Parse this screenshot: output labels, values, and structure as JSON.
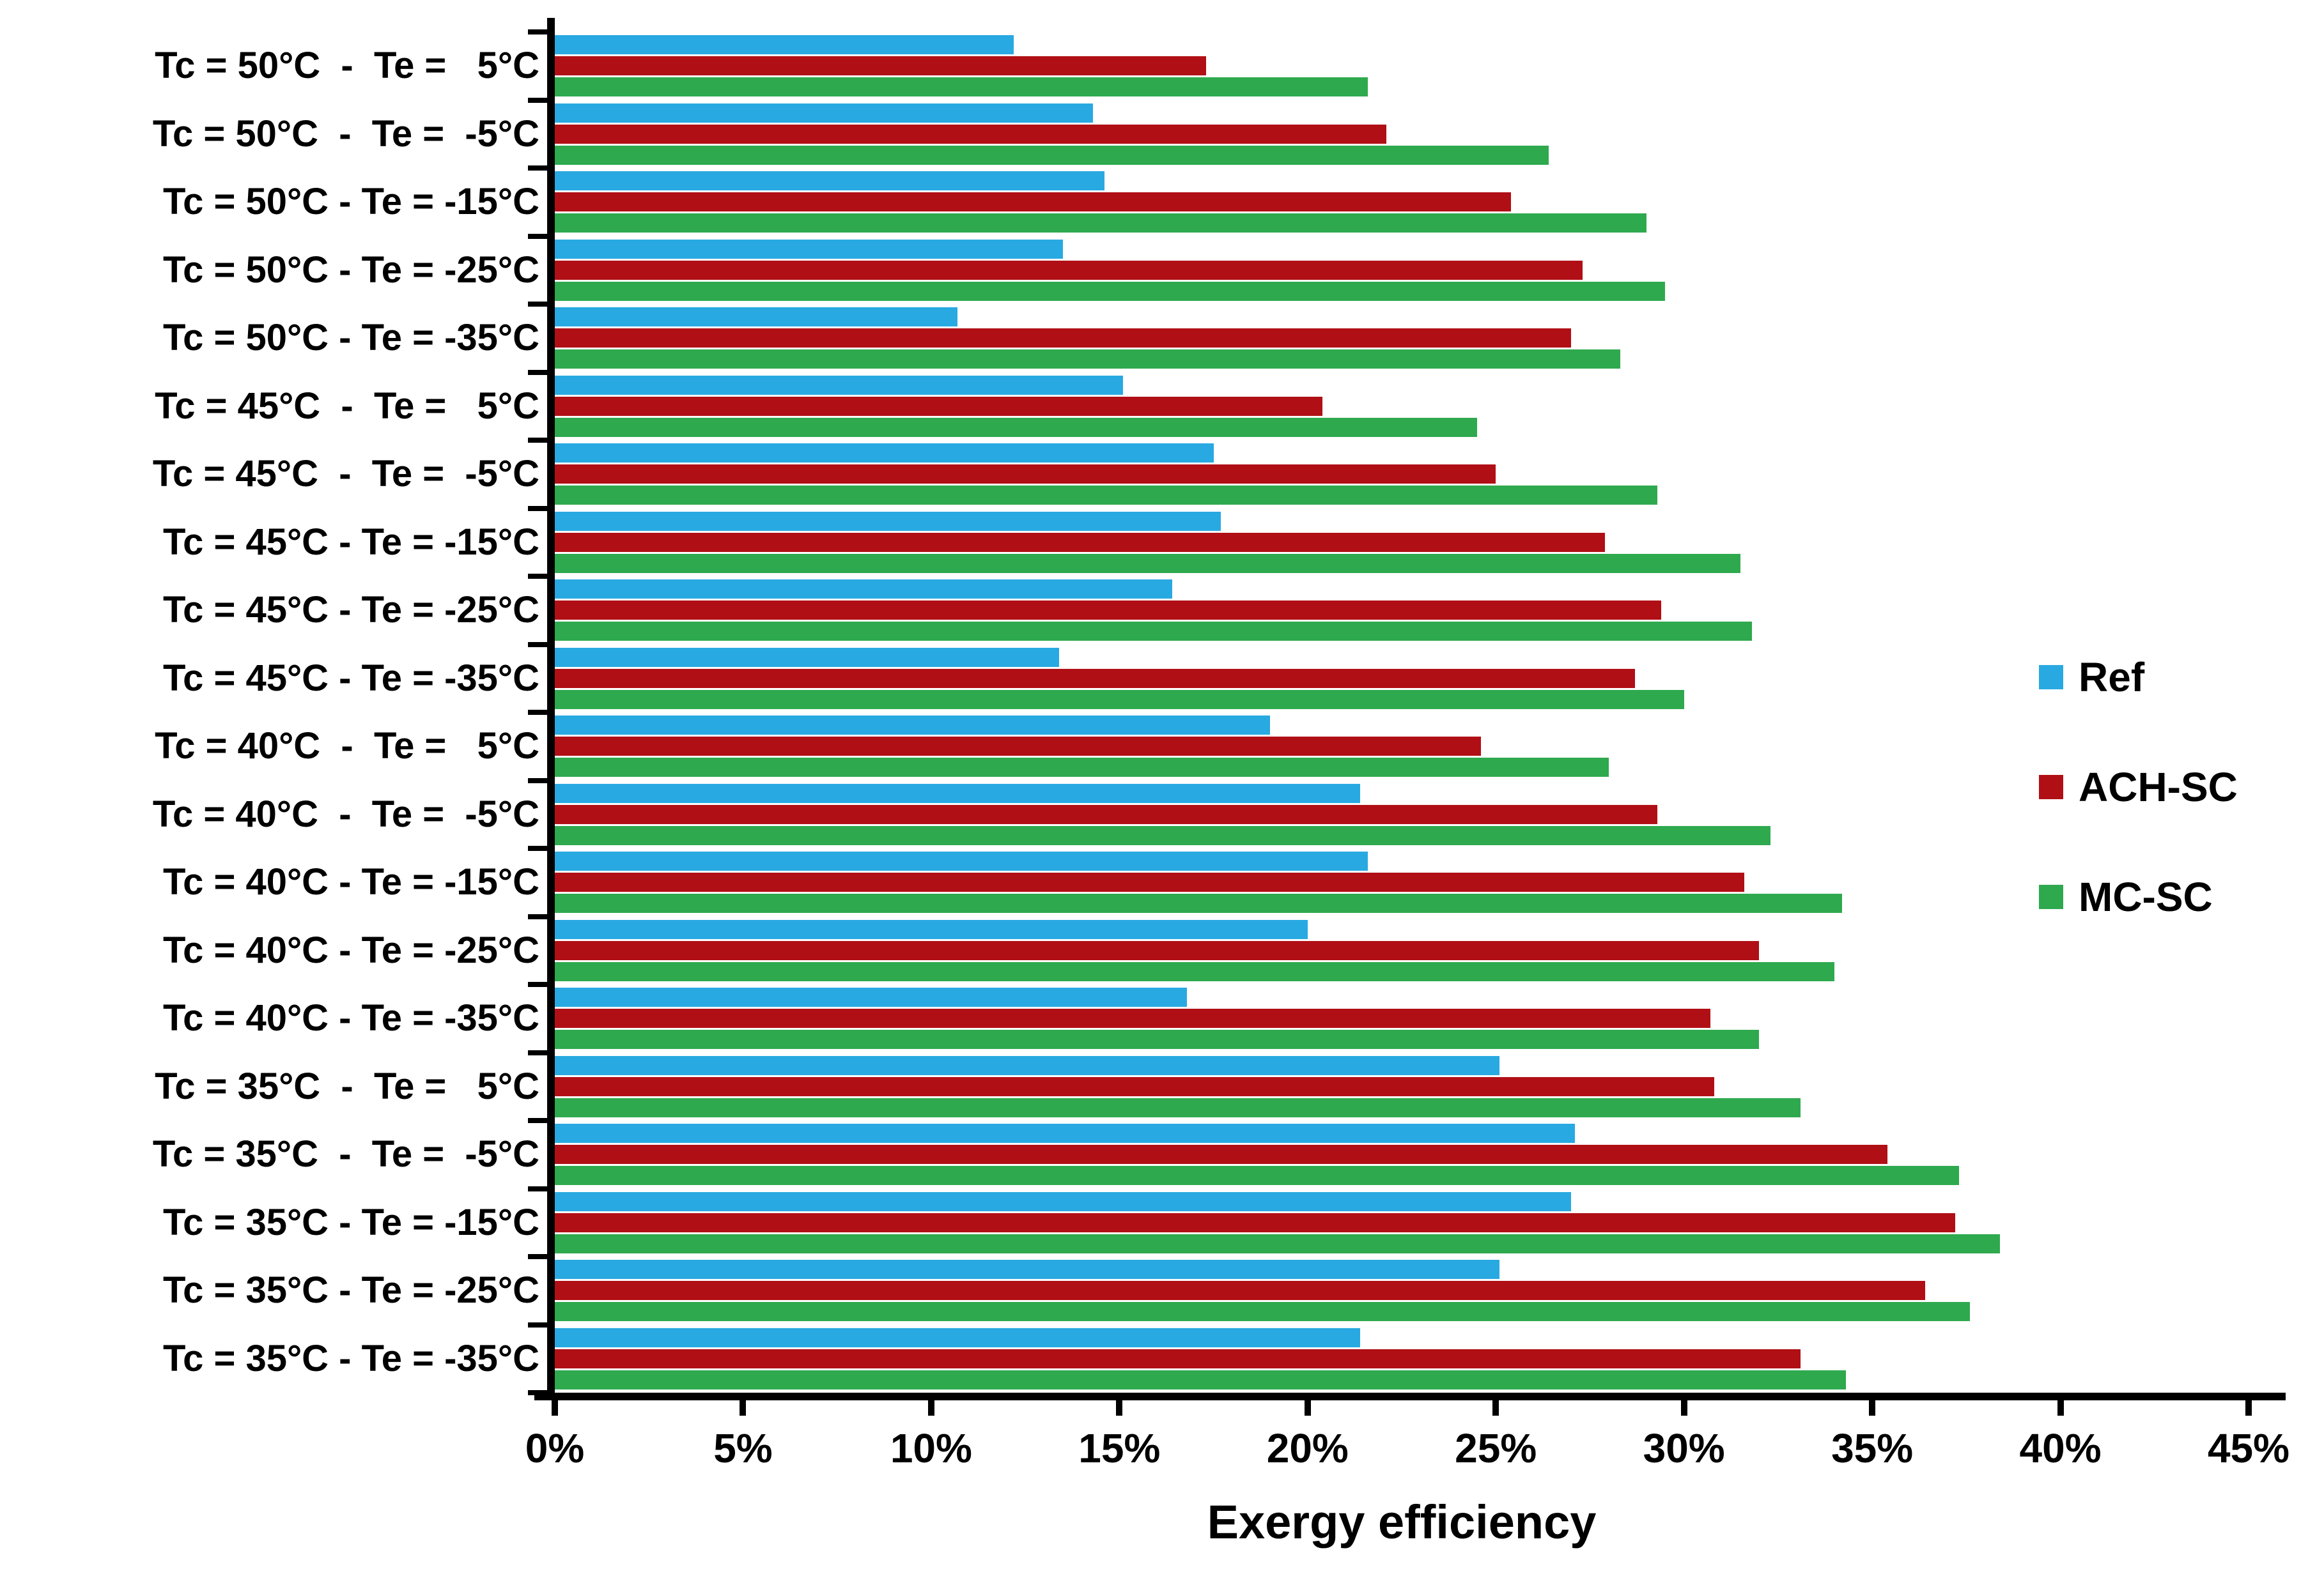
{
  "chart_data": {
    "type": "bar",
    "orientation": "horizontal",
    "title": "",
    "xlabel": "Exergy efficiency",
    "ylabel": "",
    "xlim": [
      0,
      45
    ],
    "x_ticks": [
      "0%",
      "5%",
      "10%",
      "15%",
      "20%",
      "25%",
      "30%",
      "35%",
      "40%",
      "45%"
    ],
    "grid": false,
    "legend_position": "right",
    "categories": [
      "Tc = 50°C  -  Te =   5°C",
      "Tc = 50°C  -  Te =  -5°C",
      "Tc = 50°C - Te = -15°C",
      "Tc = 50°C - Te = -25°C",
      "Tc = 50°C - Te = -35°C",
      "Tc = 45°C  -  Te =   5°C",
      "Tc = 45°C  -  Te =  -5°C",
      "Tc = 45°C - Te = -15°C",
      "Tc = 45°C - Te = -25°C",
      "Tc = 45°C - Te = -35°C",
      "Tc = 40°C  -  Te =   5°C",
      "Tc = 40°C  -  Te =  -5°C",
      "Tc = 40°C - Te = -15°C",
      "Tc = 40°C - Te = -25°C",
      "Tc = 40°C - Te = -35°C",
      "Tc = 35°C  -  Te =   5°C",
      "Tc = 35°C  -  Te =  -5°C",
      "Tc = 35°C - Te = -15°C",
      "Tc = 35°C - Te = -25°C",
      "Tc = 35°C - Te = -35°C"
    ],
    "series": [
      {
        "name": "Ref",
        "color": "#29A9E1",
        "values": [
          12.2,
          14.3,
          14.6,
          13.5,
          10.7,
          15.1,
          17.5,
          17.7,
          16.4,
          13.4,
          19.0,
          21.4,
          21.6,
          20.0,
          16.8,
          25.1,
          27.1,
          27.0,
          25.1,
          21.4
        ]
      },
      {
        "name": "ACH-SC",
        "color": "#B00F15",
        "values": [
          17.3,
          22.1,
          25.4,
          27.3,
          27.0,
          20.4,
          25.0,
          27.9,
          29.4,
          28.7,
          24.6,
          29.3,
          31.6,
          32.0,
          30.7,
          30.8,
          35.4,
          37.2,
          36.4,
          33.1
        ]
      },
      {
        "name": "MC-SC",
        "color": "#2EA94E",
        "values": [
          21.6,
          26.4,
          29.0,
          29.5,
          28.3,
          24.5,
          29.3,
          31.5,
          31.8,
          30.0,
          28.0,
          32.3,
          34.2,
          34.0,
          32.0,
          33.1,
          37.3,
          38.4,
          37.6,
          34.3
        ]
      }
    ]
  }
}
